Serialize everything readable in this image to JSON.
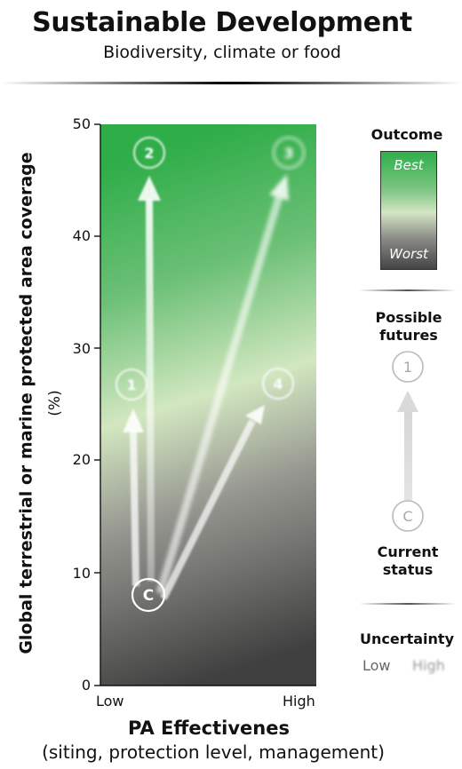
{
  "header": {
    "title": "Sustainable Development",
    "subtitle": "Biodiversity, climate or food"
  },
  "axes": {
    "ylabel_line1": "Global terrestrial or marine protected area coverage",
    "ylabel_unit": "(%)",
    "yticks": [
      "0",
      "10",
      "20",
      "30",
      "40",
      "50"
    ],
    "x_low": "Low",
    "x_high": "High",
    "xlabel": "PA Effectivenes",
    "xsub": "(siting, protection level, management)"
  },
  "scenarios": {
    "current": "C",
    "futures": [
      "1",
      "2",
      "3",
      "4"
    ]
  },
  "legend": {
    "outcome_title": "Outcome",
    "best": "Best",
    "worst": "Worst",
    "futures_title": "Possible futures",
    "example_future": "1",
    "example_current": "C",
    "current_title": "Current status",
    "uncertainty_title": "Uncertainty",
    "uncertainty_low": "Low",
    "uncertainty_high": "High"
  }
}
